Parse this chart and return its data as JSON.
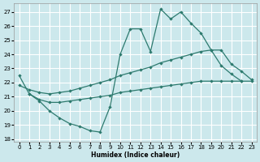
{
  "xlabel": "Humidex (Indice chaleur)",
  "bg_color": "#cce8ec",
  "grid_color": "#ffffff",
  "line_color": "#2d7a6e",
  "xlim": [
    -0.5,
    23.5
  ],
  "ylim": [
    17.8,
    27.6
  ],
  "yticks": [
    18,
    19,
    20,
    21,
    22,
    23,
    24,
    25,
    26,
    27
  ],
  "xticks": [
    0,
    1,
    2,
    3,
    4,
    5,
    6,
    7,
    8,
    9,
    10,
    11,
    12,
    13,
    14,
    15,
    16,
    17,
    18,
    19,
    20,
    21,
    22,
    23
  ],
  "line_zigzag_x": [
    0,
    1,
    2,
    3,
    4,
    5,
    6,
    7,
    8,
    9,
    10,
    11,
    12,
    13,
    14,
    15,
    16,
    17,
    18,
    19,
    20,
    21,
    22
  ],
  "line_zigzag_y": [
    22.5,
    21.2,
    20.7,
    20.0,
    19.5,
    19.1,
    18.9,
    18.6,
    18.5,
    20.3,
    24.0,
    25.8,
    25.8,
    24.2,
    27.2,
    26.5,
    27.0,
    26.2,
    25.5,
    24.3,
    23.2,
    22.6,
    22.1
  ],
  "line_upper_x": [
    0,
    1,
    2,
    3,
    4,
    5,
    6,
    7,
    8,
    9,
    10,
    11,
    12,
    13,
    14,
    15,
    16,
    17,
    18,
    19,
    20,
    21,
    22,
    23
  ],
  "line_upper_y": [
    21.8,
    21.5,
    21.3,
    21.2,
    21.3,
    21.4,
    21.6,
    21.8,
    22.0,
    22.2,
    22.5,
    22.7,
    22.9,
    23.1,
    23.4,
    23.6,
    23.8,
    24.0,
    24.2,
    24.3,
    24.3,
    23.3,
    22.8,
    22.2
  ],
  "line_lower_x": [
    1,
    2,
    3,
    4,
    5,
    6,
    7,
    8,
    9,
    10,
    11,
    12,
    13,
    14,
    15,
    16,
    17,
    18,
    19,
    20,
    21,
    22,
    23
  ],
  "line_lower_y": [
    21.2,
    20.8,
    20.6,
    20.6,
    20.7,
    20.8,
    20.9,
    21.0,
    21.1,
    21.3,
    21.4,
    21.5,
    21.6,
    21.7,
    21.8,
    21.9,
    22.0,
    22.1,
    22.1,
    22.1,
    22.1,
    22.1,
    22.1
  ]
}
